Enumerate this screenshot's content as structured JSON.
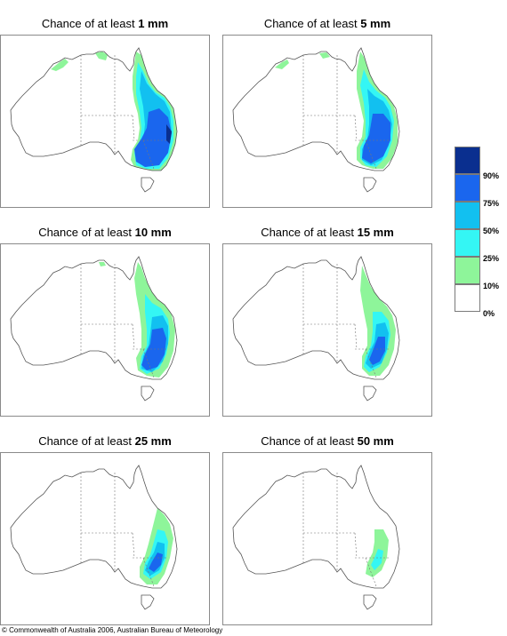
{
  "panels": [
    {
      "prefix": "Chance of at least ",
      "amount": "1 mm",
      "level": 0
    },
    {
      "prefix": "Chance of at least ",
      "amount": "5 mm",
      "level": 1
    },
    {
      "prefix": "Chance of at least ",
      "amount": "10 mm",
      "level": 2
    },
    {
      "prefix": "Chance of at least ",
      "amount": "15 mm",
      "level": 3
    },
    {
      "prefix": "Chance of at least ",
      "amount": "25 mm",
      "level": 4
    },
    {
      "prefix": "Chance of at least ",
      "amount": "50 mm",
      "level": 5
    }
  ],
  "legend": {
    "labels": [
      "90%",
      "75%",
      "50%",
      "25%",
      "10%",
      "0%"
    ],
    "colors": [
      "#0a2f8f",
      "#1a66ee",
      "#12c0f0",
      "#34f6f4",
      "#8ef59a",
      "#ffffff"
    ]
  },
  "footer": {
    "copyright": "© Commonwealth of Australia 2006, Australian Bureau of Meteorology"
  }
}
